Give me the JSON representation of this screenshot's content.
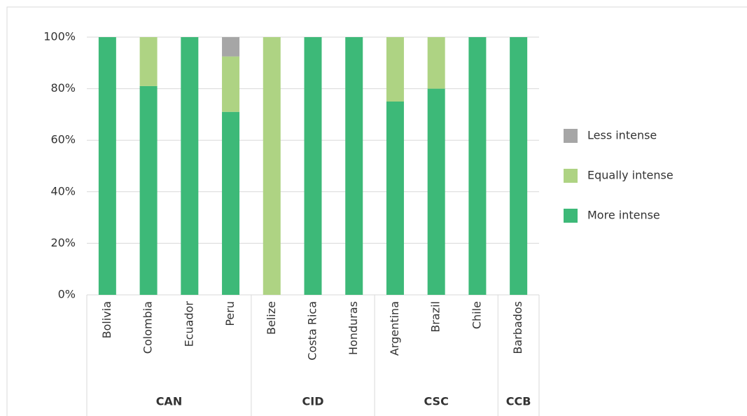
{
  "chart_data": {
    "type": "stacked_bar",
    "categories": [
      "Bolivia",
      "Colombia",
      "Ecuador",
      "Peru",
      "Belize",
      "Costa Rica",
      "Honduras",
      "Argentina",
      "Brazil",
      "Chile",
      "Barbados"
    ],
    "category_groups": [
      {
        "name": "CAN",
        "size": 4
      },
      {
        "name": "CID",
        "size": 3
      },
      {
        "name": "CSC",
        "size": 3
      },
      {
        "name": "CCB",
        "size": 1
      }
    ],
    "series": [
      {
        "name": "More intense",
        "color": "#3db978",
        "values": [
          100,
          81,
          100,
          71,
          0,
          100,
          100,
          75,
          80,
          100,
          100
        ]
      },
      {
        "name": "Equally intense",
        "color": "#aed383",
        "values": [
          0,
          19,
          0,
          21.5,
          100,
          0,
          0,
          25,
          20,
          0,
          0
        ]
      },
      {
        "name": "Less intense",
        "color": "#a6a6a6",
        "values": [
          0,
          0,
          0,
          7.5,
          0,
          0,
          0,
          0,
          0,
          0,
          0
        ]
      }
    ],
    "ylim": [
      0,
      100
    ],
    "yticks": [
      {
        "value": 0,
        "label": "0%"
      },
      {
        "value": 20,
        "label": "20%"
      },
      {
        "value": 40,
        "label": "40%"
      },
      {
        "value": 60,
        "label": "60%"
      },
      {
        "value": 80,
        "label": "80%"
      },
      {
        "value": 100,
        "label": "100%"
      }
    ],
    "grid": true,
    "legend": "right"
  }
}
